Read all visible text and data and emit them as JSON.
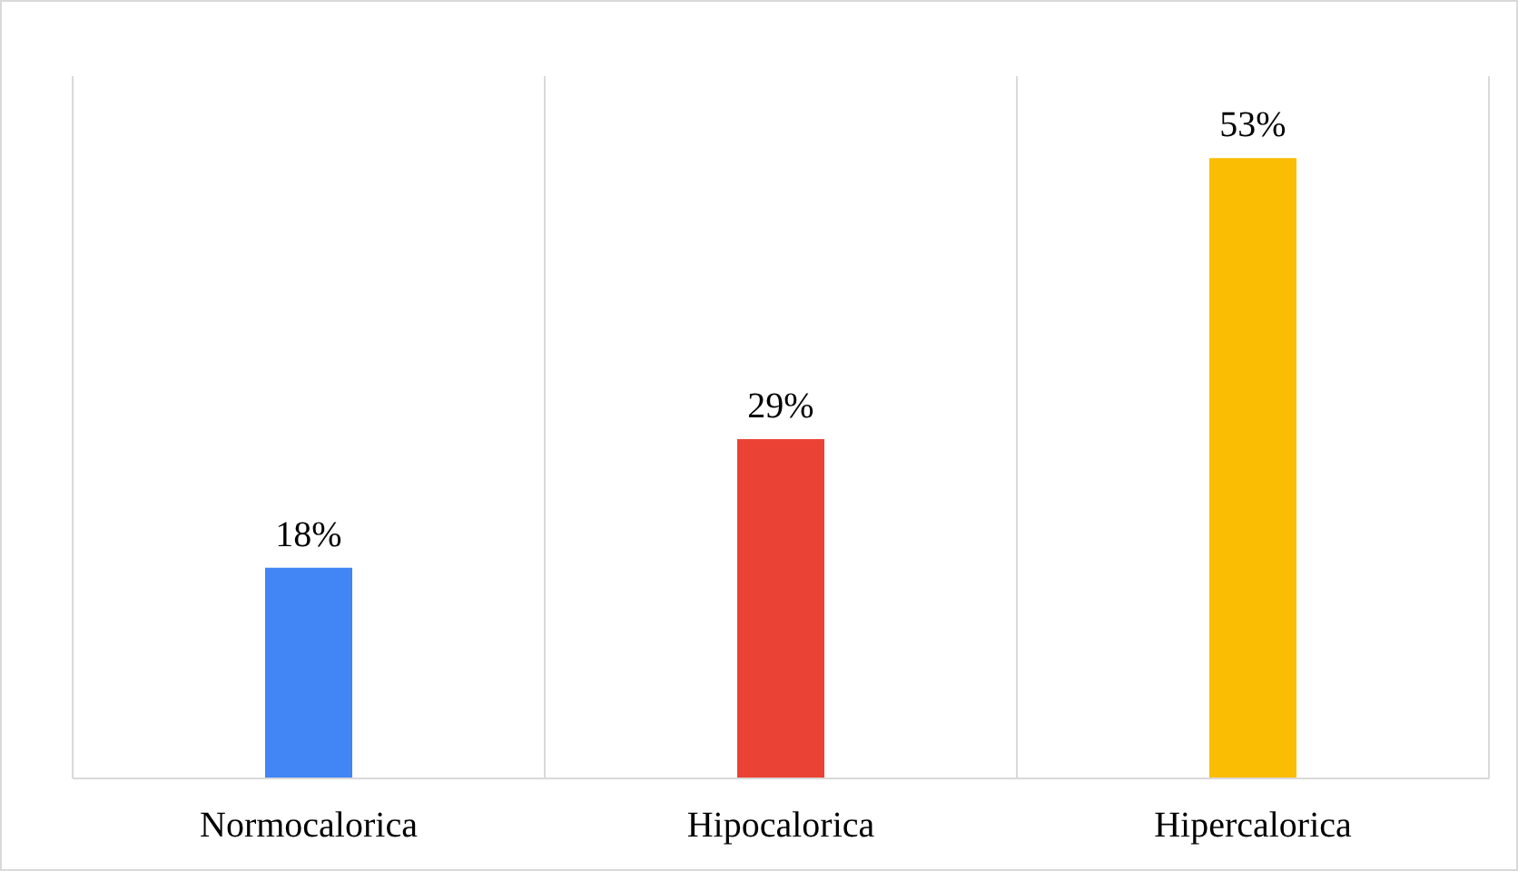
{
  "chart_data": {
    "type": "bar",
    "categories": [
      "Normocalorica",
      "Hipocalorica",
      "Hipercalorica"
    ],
    "values": [
      18,
      29,
      53
    ],
    "colors": [
      "#4285f4",
      "#ea4335",
      "#fbbc04"
    ],
    "value_labels": [
      "18%",
      "29%",
      "53%"
    ],
    "ylim": [
      0,
      60
    ],
    "grid": "x",
    "tick_labels": "x"
  }
}
